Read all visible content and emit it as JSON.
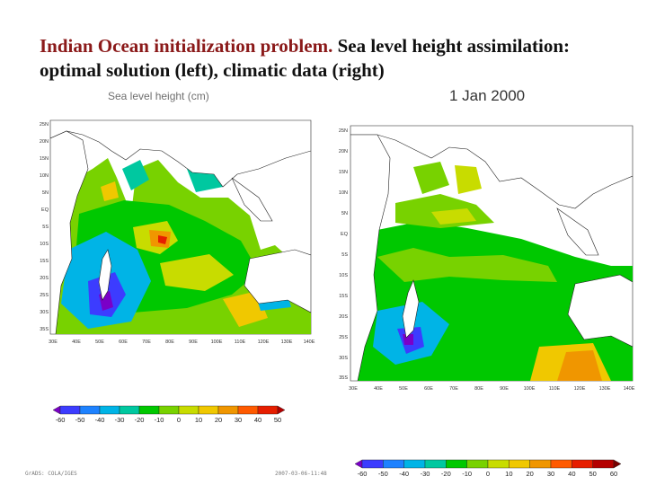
{
  "title": {
    "highlight": "Indian Ocean initialization problem.",
    "rest": " Sea level height assimilation:",
    "line3": "optimal solution (left), climatic data  (right)"
  },
  "overlap_text": "Sea level height (cm)",
  "date_label": "1 Jan 2000",
  "left_map": {
    "lat_labels": [
      "25N",
      "20N",
      "15N",
      "10N",
      "5N",
      "EQ",
      "5S",
      "10S",
      "15S",
      "20S",
      "25S",
      "30S",
      "35S"
    ],
    "lon_labels": [
      "30E",
      "40E",
      "50E",
      "60E",
      "70E",
      "80E",
      "90E",
      "100E",
      "110E",
      "120E",
      "130E",
      "140E"
    ]
  },
  "right_map": {
    "lat_labels": [
      "25N",
      "20N",
      "15N",
      "10N",
      "5N",
      "EQ",
      "5S",
      "10S",
      "15S",
      "20S",
      "25S",
      "30S",
      "35S"
    ],
    "lon_labels": [
      "30E",
      "40E",
      "50E",
      "60E",
      "70E",
      "80E",
      "90E",
      "100E",
      "110E",
      "120E",
      "130E",
      "140E"
    ]
  },
  "colorbar_left": {
    "labels": [
      "-60",
      "-50",
      "-40",
      "-30",
      "-20",
      "-10",
      "0",
      "10",
      "20",
      "30",
      "40",
      "50"
    ],
    "colors": [
      "#7a00c8",
      "#3c3cff",
      "#1e82ff",
      "#00b4e6",
      "#00c8a0",
      "#00c800",
      "#78d200",
      "#c8dc00",
      "#f0c800",
      "#f09600",
      "#ff5a00",
      "#e61e00",
      "#b40000"
    ]
  },
  "colorbar_right": {
    "labels": [
      "-60",
      "-50",
      "-40",
      "-30",
      "-20",
      "-10",
      "0",
      "10",
      "20",
      "30",
      "40",
      "50",
      "60"
    ],
    "colors": [
      "#7a00c8",
      "#3c3cff",
      "#1e82ff",
      "#00b4e6",
      "#00c8a0",
      "#00c800",
      "#78d200",
      "#c8dc00",
      "#f0c800",
      "#f09600",
      "#ff5a00",
      "#e61e00",
      "#b40000",
      "#780000"
    ]
  },
  "footer": {
    "left": "GrADS: COLA/IGES",
    "right": "2007-03-06-11:48"
  }
}
